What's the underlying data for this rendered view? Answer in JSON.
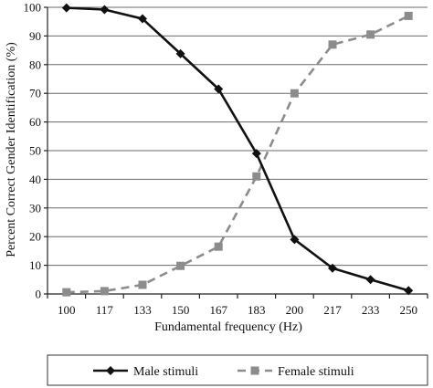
{
  "chart_data": {
    "type": "line",
    "title": "",
    "xlabel": "Fundamental frequency (Hz)",
    "ylabel": "Percent Correct Gender Identification (%)",
    "categories": [
      "100",
      "117",
      "133",
      "150",
      "167",
      "183",
      "200",
      "217",
      "233",
      "250"
    ],
    "ylim": [
      0,
      100
    ],
    "yticks": [
      0,
      10,
      20,
      30,
      40,
      50,
      60,
      70,
      80,
      90,
      100
    ],
    "grid": "horizontal",
    "legend_position": "bottom",
    "series": [
      {
        "name": "Male stimuli",
        "values": [
          99.8,
          99.2,
          96.0,
          83.8,
          71.5,
          49.0,
          19.0,
          9.0,
          5.0,
          1.2
        ],
        "color": "#111111",
        "line_style": "solid",
        "marker": "diamond"
      },
      {
        "name": "Female stimuli",
        "values": [
          0.6,
          1.0,
          3.2,
          9.8,
          16.5,
          41.0,
          70.0,
          87.0,
          90.5,
          97.0
        ],
        "color": "#8c8c8c",
        "line_style": "dashed",
        "marker": "square"
      }
    ]
  }
}
